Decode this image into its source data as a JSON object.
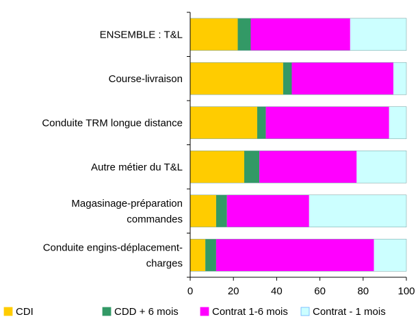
{
  "chart_data": {
    "type": "bar",
    "orientation": "horizontal",
    "stacked": true,
    "categories": [
      [
        "ENSEMBLE : T&L"
      ],
      [
        "Course-livraison"
      ],
      [
        "Conduite TRM longue distance"
      ],
      [
        "Autre métier du T&L"
      ],
      [
        "Magasinage-préparation",
        "commandes"
      ],
      [
        "Conduite engins-déplacement-",
        "charges"
      ]
    ],
    "series": [
      {
        "name": "CDI",
        "color": "#FFCC00",
        "values": [
          22,
          43,
          31,
          25,
          12,
          7
        ]
      },
      {
        "name": "CDD + 6 mois",
        "color": "#339966",
        "values": [
          6,
          4,
          4,
          7,
          5,
          5
        ]
      },
      {
        "name": "Contrat 1-6 mois",
        "color": "#FF00FF",
        "values": [
          46,
          47,
          57,
          45,
          38,
          73
        ]
      },
      {
        "name": "Contrat - 1 mois",
        "color": "#CCFFFF",
        "values": [
          26,
          6,
          8,
          23,
          45,
          15
        ]
      }
    ],
    "x_ticks": [
      "0",
      "20",
      "40",
      "60",
      "80",
      "100"
    ],
    "xlim": [
      0,
      100
    ],
    "grid": false,
    "legend_position": "bottom"
  }
}
